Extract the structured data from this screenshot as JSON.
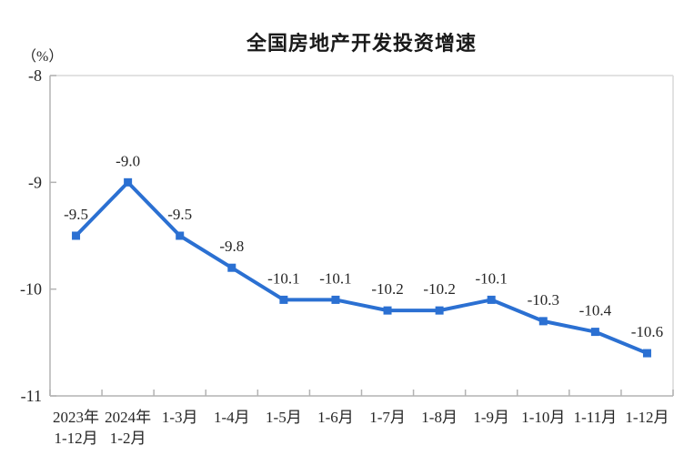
{
  "chart_data": {
    "type": "line",
    "title": "全国房地产开发投资增速",
    "unit_label": "（%）",
    "categories": [
      "2023年\n1-12月",
      "2024年\n1-2月",
      "1-3月",
      "1-4月",
      "1-5月",
      "1-6月",
      "1-7月",
      "1-8月",
      "1-9月",
      "1-10月",
      "1-11月",
      "1-12月"
    ],
    "values": [
      -9.5,
      -9.0,
      -9.5,
      -9.8,
      -10.1,
      -10.1,
      -10.2,
      -10.2,
      -10.1,
      -10.3,
      -10.4,
      -10.6
    ],
    "data_labels": [
      "-9.5",
      "-9.0",
      "-9.5",
      "-9.8",
      "-10.1",
      "-10.1",
      "-10.2",
      "-10.2",
      "-10.1",
      "-10.3",
      "-10.4",
      "-10.6"
    ],
    "xlabel": "",
    "ylabel": "（%）",
    "ylim": [
      -11,
      -8
    ],
    "yticks": [
      -8,
      -9,
      -10,
      -11
    ],
    "grid": false,
    "legend": "none",
    "colors": {
      "line": "#2b70d2",
      "marker": "#2b70d2",
      "label_text": "#262626",
      "axis": "#b3b3b3",
      "border": "#d9d9d9",
      "title_text": "#1a1a1a",
      "background": "#ffffff"
    }
  }
}
